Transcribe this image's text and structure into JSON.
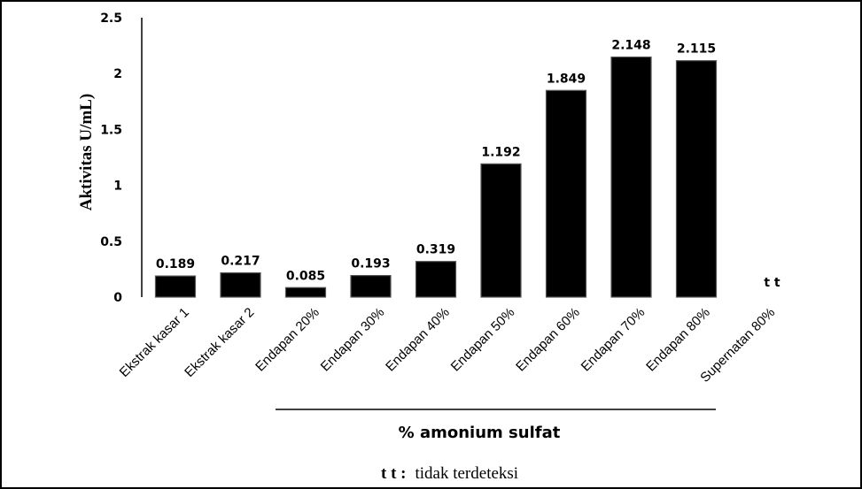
{
  "chart_data": {
    "type": "bar",
    "title": "",
    "xlabel": "% amonium sulfat",
    "ylabel": "Aktivitas U/mL)",
    "ylim": [
      0,
      2.5
    ],
    "yticks": [
      "0",
      "0.5",
      "1",
      "1.5",
      "2",
      "2.5"
    ],
    "categories": [
      "Ekstrak kasar 1",
      "Ekstrak kasar 2",
      "Endapan 20%",
      "Endapan 30%",
      "Endapan 40%",
      "Endapan 50%",
      "Endapan 60%",
      "Endapan 70%",
      "Endapan 80%",
      "Supernatan 80%"
    ],
    "values": [
      0.189,
      0.217,
      0.085,
      0.193,
      0.319,
      1.192,
      1.849,
      2.148,
      2.115,
      null
    ],
    "data_labels": [
      "0.189",
      "0.217",
      "0.085",
      "0.193",
      "0.319",
      "1.192",
      "1.849",
      "2.148",
      "2.115",
      "t t"
    ],
    "bar_color": "#000000",
    "grid": false,
    "legend": "none"
  },
  "note": {
    "abbr": "t t :",
    "text": "tidak terdeteksi"
  }
}
